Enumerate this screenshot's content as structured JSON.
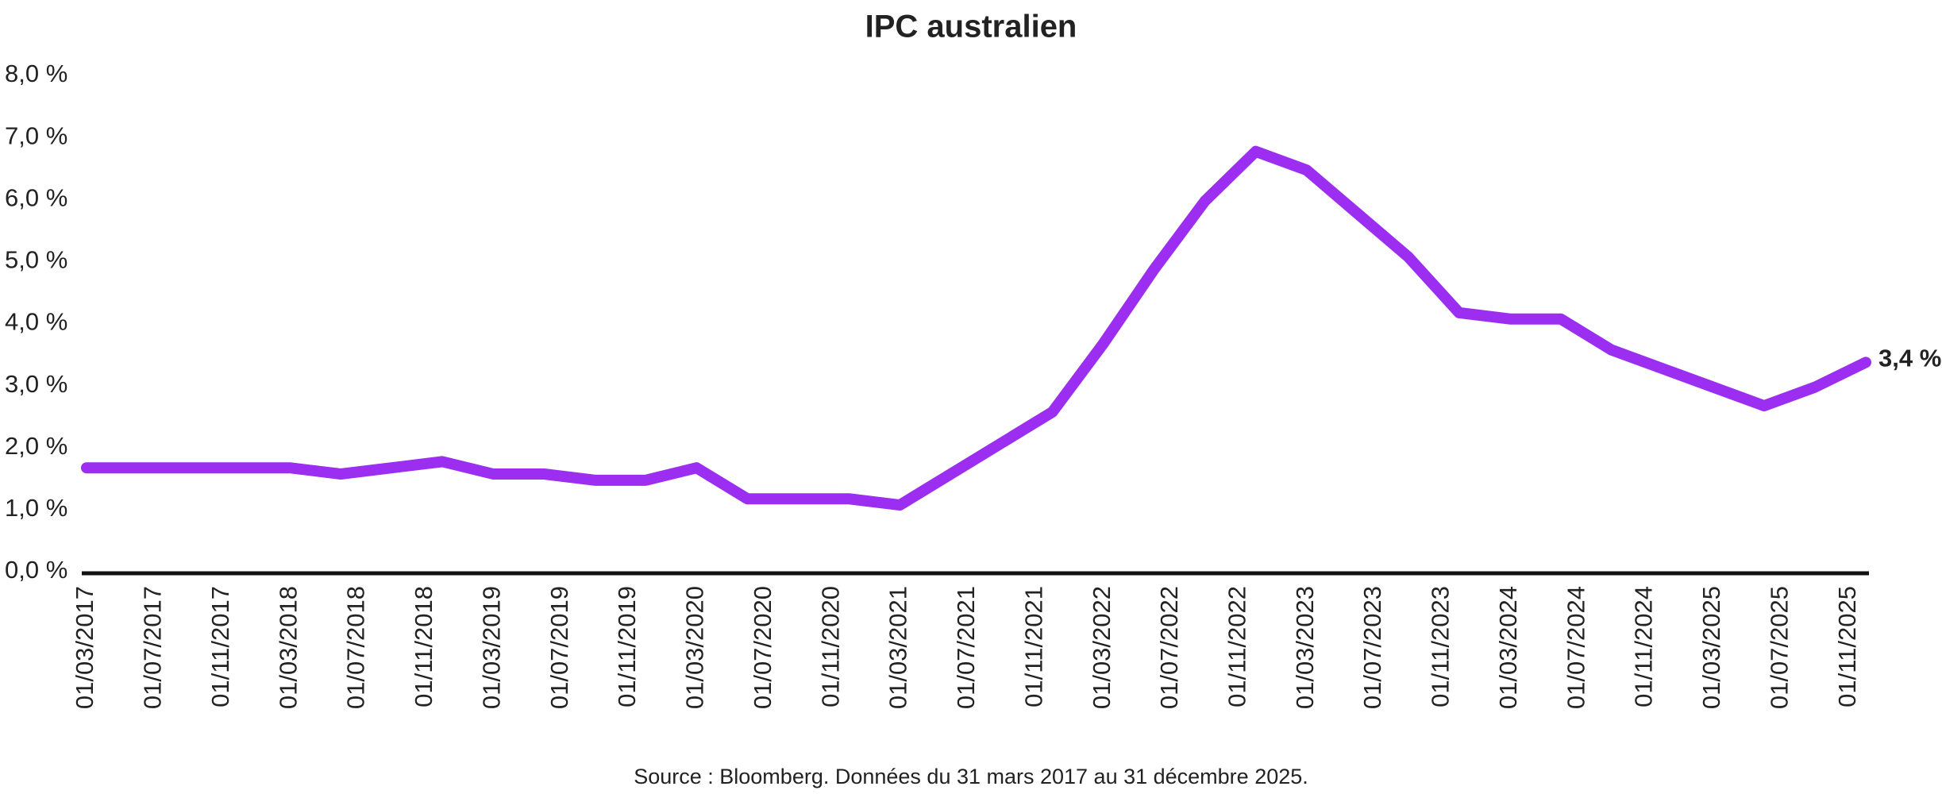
{
  "chart_data": {
    "type": "line",
    "title": "IPC australien",
    "source": "Source : Bloomberg. Données du 31 mars 2017 au 31 décembre 2025.",
    "x": [
      "01/03/2017",
      "01/06/2017",
      "01/09/2017",
      "01/12/2017",
      "01/03/2018",
      "01/06/2018",
      "01/09/2018",
      "01/12/2018",
      "01/03/2019",
      "01/06/2019",
      "01/09/2019",
      "01/12/2019",
      "01/03/2020",
      "01/06/2020",
      "01/09/2020",
      "01/12/2020",
      "01/03/2021",
      "01/06/2021",
      "01/09/2021",
      "01/12/2021",
      "01/03/2022",
      "01/06/2022",
      "01/09/2022",
      "01/12/2022",
      "01/03/2023",
      "01/06/2023",
      "01/09/2023",
      "01/12/2023",
      "01/03/2024",
      "01/06/2024",
      "01/09/2024",
      "01/12/2024",
      "01/03/2025",
      "01/06/2025",
      "01/09/2025",
      "01/12/2025"
    ],
    "series": [
      {
        "name": "IPC australien",
        "color": "#9b2ef0",
        "values": [
          1.7,
          1.7,
          1.7,
          1.7,
          1.7,
          1.6,
          1.7,
          1.8,
          1.6,
          1.6,
          1.5,
          1.5,
          1.7,
          1.2,
          1.2,
          1.2,
          1.1,
          1.6,
          2.1,
          2.6,
          3.7,
          4.9,
          6.0,
          6.8,
          6.5,
          5.8,
          5.1,
          4.2,
          4.1,
          4.1,
          3.6,
          3.3,
          3.0,
          2.7,
          3.0,
          3.4
        ],
        "end_label": {
          "value": 3.4,
          "label": "3,4 %"
        }
      }
    ],
    "xlim": [
      "01/03/2017",
      "01/12/2025"
    ],
    "xticks": [
      "01/03/2017",
      "01/07/2017",
      "01/11/2017",
      "01/03/2018",
      "01/07/2018",
      "01/11/2018",
      "01/03/2019",
      "01/07/2019",
      "01/11/2019",
      "01/03/2020",
      "01/07/2020",
      "01/11/2020",
      "01/03/2021",
      "01/07/2021",
      "01/11/2021",
      "01/03/2022",
      "01/07/2022",
      "01/11/2022",
      "01/03/2023",
      "01/07/2023",
      "01/11/2023",
      "01/03/2024",
      "01/07/2024",
      "01/11/2024",
      "01/03/2025",
      "01/07/2025",
      "01/11/2025"
    ],
    "ylim": [
      0,
      8
    ],
    "yticks": [
      {
        "value": 0,
        "label": "0,0 %"
      },
      {
        "value": 1,
        "label": "1,0 %"
      },
      {
        "value": 2,
        "label": "2,0 %"
      },
      {
        "value": 3,
        "label": "3,0 %"
      },
      {
        "value": 4,
        "label": "4,0 %"
      },
      {
        "value": 5,
        "label": "5,0 %"
      },
      {
        "value": 6,
        "label": "6,0 %"
      },
      {
        "value": 7,
        "label": "7,0 %"
      },
      {
        "value": 8,
        "label": "8,0 %"
      }
    ],
    "grid": false
  }
}
